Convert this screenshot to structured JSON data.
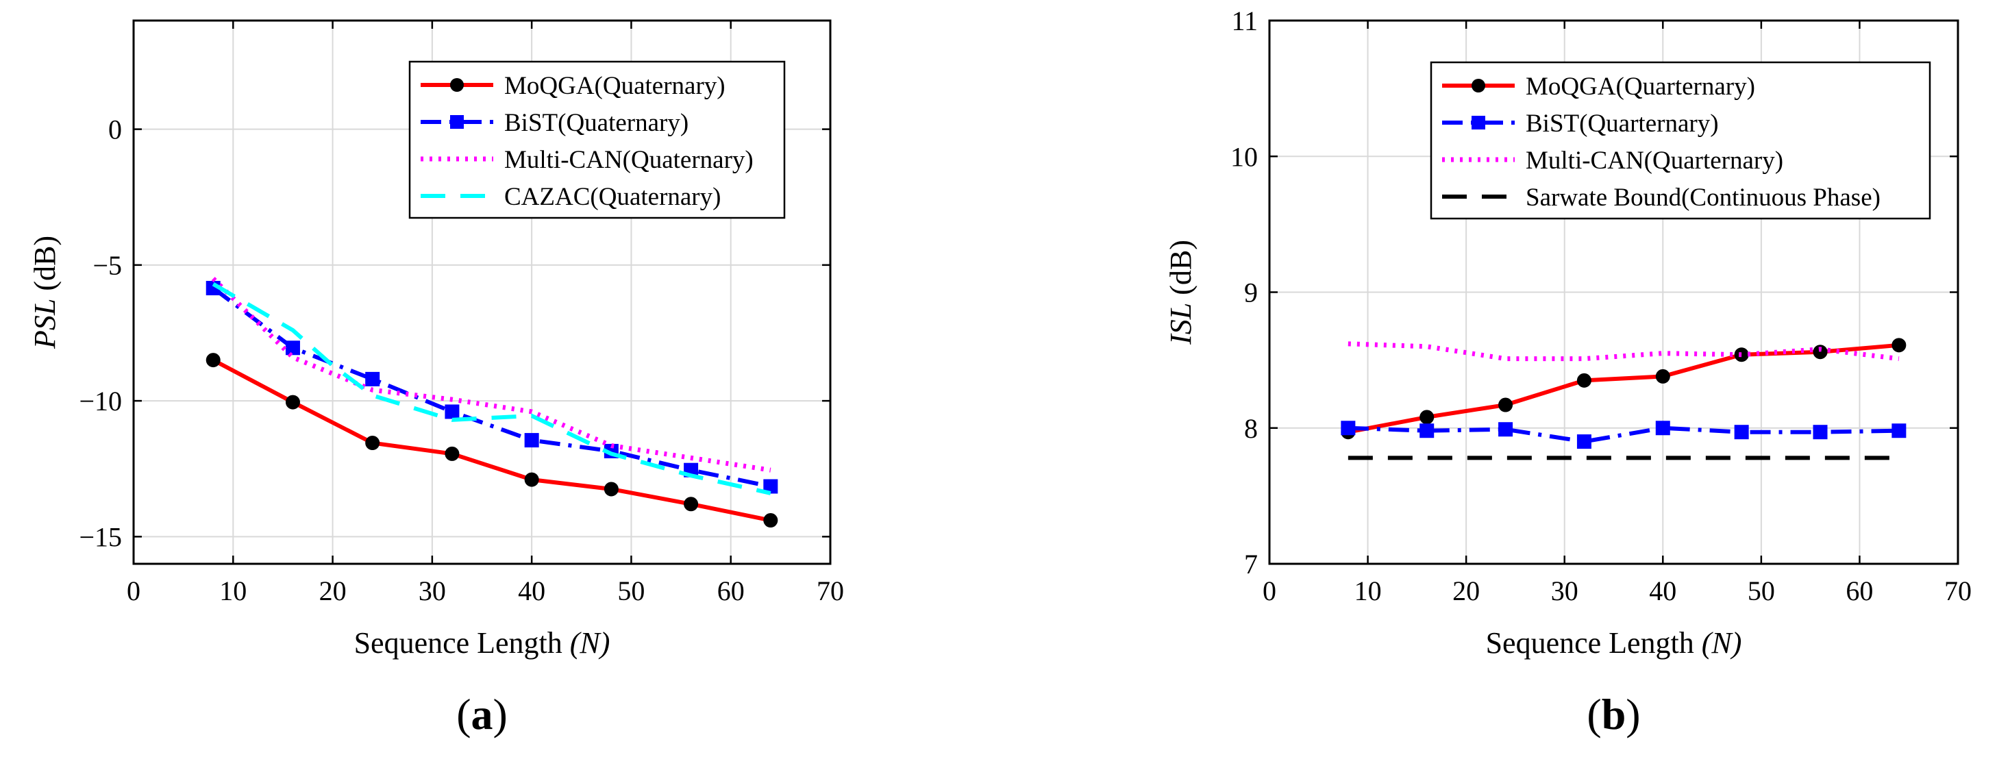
{
  "chart_data": [
    {
      "type": "line",
      "panel_label": "(a)",
      "xlabel_prefix": "Sequence Length ",
      "xlabel_var": "(N)",
      "ylabel_var": "PSL",
      "ylabel_unit": " (dB)",
      "xlim": [
        0,
        70
      ],
      "ylim": [
        -16,
        4
      ],
      "xticks": [
        0,
        10,
        20,
        30,
        40,
        50,
        60,
        70
      ],
      "yticks": [
        0,
        -5,
        -10,
        -15
      ],
      "ytick_labels": [
        "0",
        "−5",
        "−10",
        "−15"
      ],
      "grid": true,
      "legend_position": "top-right",
      "series": [
        {
          "name": "MoQGA(Quaternary)",
          "color": "#ff0000",
          "style": "solid",
          "marker": "circle",
          "x": [
            8,
            16,
            24,
            32,
            40,
            48,
            56,
            64
          ],
          "y": [
            -8.5,
            -10.05,
            -11.55,
            -11.95,
            -12.9,
            -13.25,
            -13.8,
            -14.4
          ]
        },
        {
          "name": "BiST(Quaternary)",
          "color": "#0000ff",
          "style": "dashdot",
          "marker": "square",
          "x": [
            8,
            16,
            24,
            32,
            40,
            48,
            56,
            64
          ],
          "y": [
            -5.85,
            -8.05,
            -9.2,
            -10.4,
            -11.45,
            -11.85,
            -12.55,
            -13.15
          ]
        },
        {
          "name": "Multi-CAN(Quaternary)",
          "color": "#ff00ff",
          "style": "dotted",
          "marker": "none",
          "x": [
            8,
            16,
            24,
            32,
            40,
            48,
            56,
            64
          ],
          "y": [
            -5.5,
            -8.4,
            -9.6,
            -9.95,
            -10.4,
            -11.65,
            -12.1,
            -12.55
          ]
        },
        {
          "name": "CAZAC(Quaternary)",
          "color": "#00ffff",
          "style": "dashed",
          "marker": "none",
          "x": [
            8,
            16,
            20,
            24,
            32,
            40,
            48,
            56,
            64
          ],
          "y": [
            -5.7,
            -7.4,
            -8.7,
            -9.8,
            -10.7,
            -10.55,
            -11.95,
            -12.75,
            -13.4
          ]
        }
      ]
    },
    {
      "type": "line",
      "panel_label": "(b)",
      "xlabel_prefix": "Sequence Length ",
      "xlabel_var": "(N)",
      "ylabel_var": "ISL",
      "ylabel_unit": " (dB)",
      "xlim": [
        0,
        70
      ],
      "ylim": [
        7,
        11
      ],
      "xticks": [
        0,
        10,
        20,
        30,
        40,
        50,
        60,
        70
      ],
      "yticks": [
        7,
        8,
        9,
        10,
        11
      ],
      "ytick_labels": [
        "7",
        "8",
        "9",
        "10",
        "11"
      ],
      "grid": true,
      "legend_position": "top-right",
      "series": [
        {
          "name": "MoQGA(Quarternary)",
          "color": "#ff0000",
          "style": "solid",
          "marker": "circle",
          "x": [
            8,
            16,
            24,
            32,
            40,
            48,
            56,
            64
          ],
          "y": [
            7.97,
            8.08,
            8.17,
            8.35,
            8.38,
            8.54,
            8.56,
            8.61
          ]
        },
        {
          "name": "BiST(Quarternary)",
          "color": "#0000ff",
          "style": "dashdot",
          "marker": "square",
          "x": [
            8,
            16,
            24,
            32,
            40,
            48,
            56,
            64
          ],
          "y": [
            8.0,
            7.98,
            7.99,
            7.9,
            8.0,
            7.97,
            7.97,
            7.98
          ]
        },
        {
          "name": "Multi-CAN(Quarternary)",
          "color": "#ff00ff",
          "style": "dotted",
          "marker": "none",
          "x": [
            8,
            16,
            24,
            32,
            40,
            48,
            56,
            64
          ],
          "y": [
            8.62,
            8.6,
            8.51,
            8.51,
            8.55,
            8.54,
            8.58,
            8.51
          ]
        },
        {
          "name": "Sarwate Bound(Continuous Phase)",
          "color": "#000000",
          "style": "dashed",
          "marker": "none",
          "x": [
            8,
            64
          ],
          "y": [
            7.78,
            7.78
          ]
        }
      ]
    }
  ]
}
